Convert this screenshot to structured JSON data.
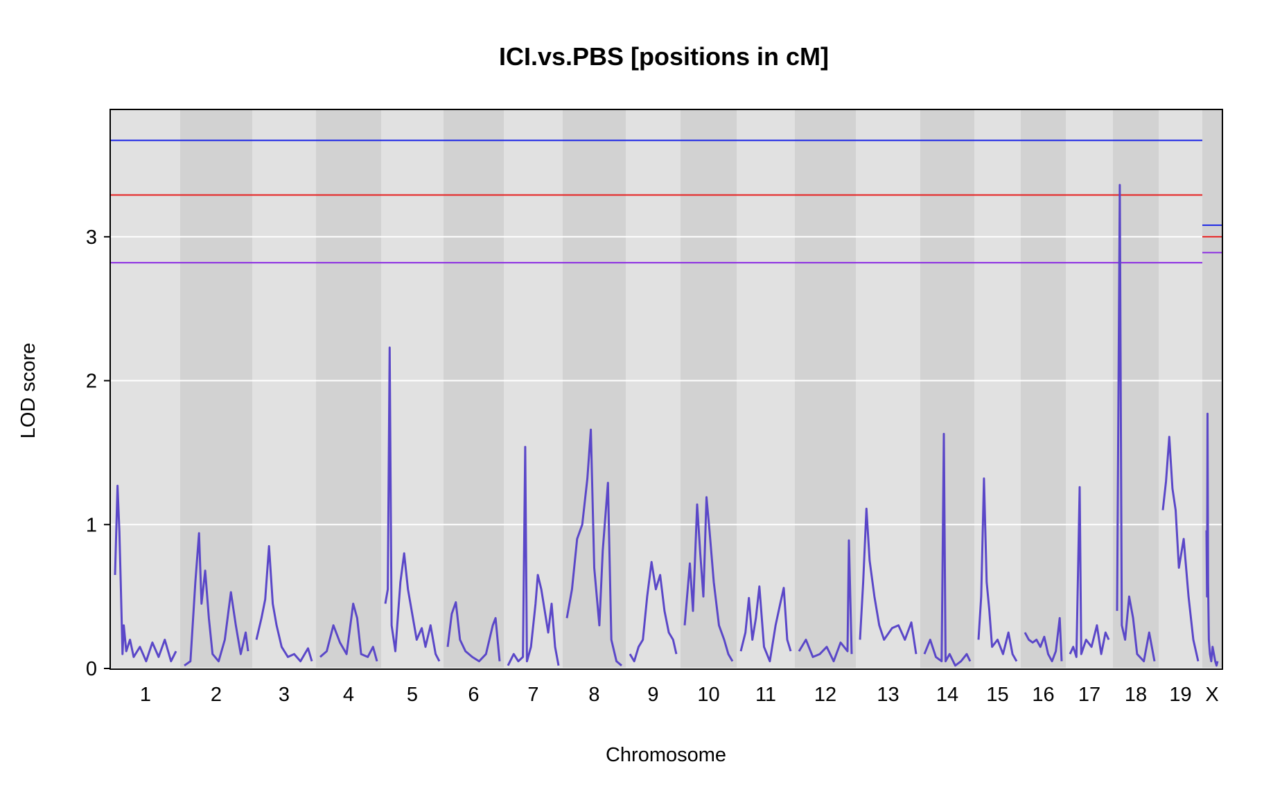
{
  "chart_data": {
    "type": "line",
    "title": "ICI.vs.PBS [positions in cM]",
    "xlabel": "Chromosome",
    "ylabel": "LOD score",
    "ylim": [
      0,
      3.88
    ],
    "yticks": [
      0,
      1,
      2,
      3
    ],
    "ytick_labels": [
      "0",
      "1",
      "2",
      "3"
    ],
    "grid": true,
    "colors": {
      "line": "#5a47c8",
      "band_light": "#e1e1e1",
      "band_dark": "#d2d2d2",
      "grid": "#ffffff",
      "threshold_blue": "#1a24e6",
      "threshold_red": "#e61a1a",
      "threshold_purple": "#8a2be2"
    },
    "chromosomes": [
      {
        "name": "1"
      },
      {
        "name": "2"
      },
      {
        "name": "3"
      },
      {
        "name": "4"
      },
      {
        "name": "5"
      },
      {
        "name": "6"
      },
      {
        "name": "7"
      },
      {
        "name": "8"
      },
      {
        "name": "9"
      },
      {
        "name": "10"
      },
      {
        "name": "11"
      },
      {
        "name": "12"
      },
      {
        "name": "13"
      },
      {
        "name": "14"
      },
      {
        "name": "15"
      },
      {
        "name": "16"
      },
      {
        "name": "17"
      },
      {
        "name": "18"
      },
      {
        "name": "19"
      },
      {
        "name": "X"
      }
    ],
    "thresholds": {
      "autosome": {
        "blue": 3.67,
        "red": 3.29,
        "purple": 2.82
      },
      "x": {
        "blue": 3.08,
        "red": 3.0,
        "purple": 2.89
      }
    },
    "series": [
      {
        "points": {
          "1": [
            [
              0,
              0.65
            ],
            [
              4,
              1.27
            ],
            [
              7,
              0.95
            ],
            [
              9,
              0.62
            ],
            [
              12,
              0.1
            ],
            [
              14,
              0.3
            ],
            [
              18,
              0.12
            ],
            [
              24,
              0.2
            ],
            [
              30,
              0.08
            ],
            [
              40,
              0.15
            ],
            [
              50,
              0.05
            ],
            [
              60,
              0.18
            ],
            [
              70,
              0.08
            ],
            [
              80,
              0.2
            ],
            [
              90,
              0.05
            ],
            [
              98,
              0.12
            ]
          ],
          "2": [
            [
              0,
              0.02
            ],
            [
              10,
              0.05
            ],
            [
              18,
              0.6
            ],
            [
              24,
              0.94
            ],
            [
              28,
              0.45
            ],
            [
              34,
              0.68
            ],
            [
              40,
              0.35
            ],
            [
              46,
              0.1
            ],
            [
              56,
              0.05
            ],
            [
              66,
              0.2
            ],
            [
              76,
              0.53
            ],
            [
              84,
              0.3
            ],
            [
              92,
              0.1
            ],
            [
              100,
              0.25
            ],
            [
              104,
              0.12
            ]
          ],
          "3": [
            [
              0,
              0.2
            ],
            [
              8,
              0.35
            ],
            [
              14,
              0.48
            ],
            [
              20,
              0.85
            ],
            [
              26,
              0.45
            ],
            [
              32,
              0.3
            ],
            [
              40,
              0.15
            ],
            [
              50,
              0.08
            ],
            [
              60,
              0.1
            ],
            [
              70,
              0.05
            ],
            [
              82,
              0.14
            ],
            [
              88,
              0.05
            ]
          ],
          "4": [
            [
              0,
              0.08
            ],
            [
              10,
              0.12
            ],
            [
              20,
              0.3
            ],
            [
              30,
              0.18
            ],
            [
              40,
              0.1
            ],
            [
              50,
              0.45
            ],
            [
              56,
              0.35
            ],
            [
              62,
              0.1
            ],
            [
              72,
              0.08
            ],
            [
              80,
              0.15
            ],
            [
              86,
              0.05
            ]
          ],
          "5": [
            [
              0,
              0.45
            ],
            [
              4,
              0.55
            ],
            [
              7,
              2.23
            ],
            [
              10,
              0.3
            ],
            [
              16,
              0.12
            ],
            [
              24,
              0.6
            ],
            [
              30,
              0.8
            ],
            [
              36,
              0.55
            ],
            [
              42,
              0.4
            ],
            [
              50,
              0.2
            ],
            [
              58,
              0.28
            ],
            [
              64,
              0.15
            ],
            [
              72,
              0.3
            ],
            [
              80,
              0.1
            ],
            [
              86,
              0.05
            ]
          ],
          "6": [
            [
              0,
              0.15
            ],
            [
              6,
              0.38
            ],
            [
              12,
              0.46
            ],
            [
              18,
              0.2
            ],
            [
              26,
              0.12
            ],
            [
              36,
              0.08
            ],
            [
              46,
              0.05
            ],
            [
              56,
              0.1
            ],
            [
              66,
              0.3
            ],
            [
              70,
              0.35
            ],
            [
              76,
              0.05
            ]
          ],
          "7": [
            [
              0,
              0.02
            ],
            [
              10,
              0.1
            ],
            [
              18,
              0.05
            ],
            [
              26,
              0.08
            ],
            [
              30,
              1.54
            ],
            [
              33,
              0.05
            ],
            [
              40,
              0.15
            ],
            [
              48,
              0.45
            ],
            [
              52,
              0.65
            ],
            [
              58,
              0.55
            ],
            [
              64,
              0.4
            ],
            [
              70,
              0.25
            ],
            [
              76,
              0.45
            ],
            [
              82,
              0.15
            ],
            [
              88,
              0.02
            ]
          ],
          "8": [
            [
              0,
              0.35
            ],
            [
              6,
              0.55
            ],
            [
              12,
              0.9
            ],
            [
              18,
              1.0
            ],
            [
              24,
              1.32
            ],
            [
              28,
              1.66
            ],
            [
              32,
              0.7
            ],
            [
              38,
              0.3
            ],
            [
              42,
              0.82
            ],
            [
              48,
              1.29
            ],
            [
              52,
              0.2
            ],
            [
              58,
              0.05
            ],
            [
              64,
              0.02
            ]
          ],
          "9": [
            [
              0,
              0.1
            ],
            [
              8,
              0.05
            ],
            [
              16,
              0.15
            ],
            [
              24,
              0.2
            ],
            [
              32,
              0.5
            ],
            [
              40,
              0.74
            ],
            [
              48,
              0.55
            ],
            [
              56,
              0.65
            ],
            [
              64,
              0.4
            ],
            [
              72,
              0.25
            ],
            [
              80,
              0.2
            ],
            [
              86,
              0.1
            ]
          ],
          "10": [
            [
              0,
              0.3
            ],
            [
              10,
              0.73
            ],
            [
              16,
              0.4
            ],
            [
              24,
              1.14
            ],
            [
              30,
              0.8
            ],
            [
              36,
              0.5
            ],
            [
              42,
              1.19
            ],
            [
              48,
              0.95
            ],
            [
              56,
              0.6
            ],
            [
              66,
              0.3
            ],
            [
              76,
              0.2
            ],
            [
              84,
              0.1
            ],
            [
              92,
              0.05
            ]
          ],
          "11": [
            [
              0,
              0.12
            ],
            [
              8,
              0.25
            ],
            [
              14,
              0.49
            ],
            [
              20,
              0.2
            ],
            [
              26,
              0.35
            ],
            [
              32,
              0.57
            ],
            [
              40,
              0.15
            ],
            [
              50,
              0.05
            ],
            [
              60,
              0.3
            ],
            [
              68,
              0.45
            ],
            [
              74,
              0.56
            ],
            [
              80,
              0.2
            ],
            [
              86,
              0.12
            ]
          ],
          "12": [
            [
              0,
              0.12
            ],
            [
              10,
              0.2
            ],
            [
              20,
              0.08
            ],
            [
              30,
              0.1
            ],
            [
              40,
              0.15
            ],
            [
              50,
              0.05
            ],
            [
              60,
              0.18
            ],
            [
              70,
              0.12
            ],
            [
              72,
              0.89
            ],
            [
              76,
              0.1
            ]
          ],
          "13": [
            [
              0,
              0.2
            ],
            [
              4,
              0.6
            ],
            [
              8,
              1.11
            ],
            [
              12,
              0.75
            ],
            [
              18,
              0.5
            ],
            [
              24,
              0.3
            ],
            [
              30,
              0.2
            ],
            [
              40,
              0.28
            ],
            [
              48,
              0.3
            ],
            [
              56,
              0.2
            ],
            [
              64,
              0.32
            ],
            [
              70,
              0.1
            ]
          ],
          "14": [
            [
              0,
              0.1
            ],
            [
              10,
              0.2
            ],
            [
              20,
              0.08
            ],
            [
              30,
              0.05
            ],
            [
              34,
              1.63
            ],
            [
              37,
              0.05
            ],
            [
              44,
              0.1
            ],
            [
              54,
              0.02
            ],
            [
              64,
              0.05
            ],
            [
              74,
              0.1
            ],
            [
              80,
              0.05
            ]
          ],
          "15": [
            [
              0,
              0.2
            ],
            [
              4,
              0.5
            ],
            [
              8,
              1.32
            ],
            [
              12,
              0.6
            ],
            [
              16,
              0.4
            ],
            [
              20,
              0.15
            ],
            [
              28,
              0.2
            ],
            [
              36,
              0.1
            ],
            [
              44,
              0.25
            ],
            [
              50,
              0.1
            ],
            [
              56,
              0.05
            ]
          ],
          "16": [
            [
              0,
              0.25
            ],
            [
              8,
              0.2
            ],
            [
              16,
              0.18
            ],
            [
              24,
              0.2
            ],
            [
              32,
              0.15
            ],
            [
              40,
              0.22
            ],
            [
              48,
              0.1
            ],
            [
              56,
              0.05
            ],
            [
              64,
              0.12
            ],
            [
              72,
              0.35
            ],
            [
              76,
              0.05
            ]
          ],
          "17": [
            [
              0,
              0.1
            ],
            [
              6,
              0.15
            ],
            [
              12,
              0.08
            ],
            [
              18,
              1.26
            ],
            [
              21,
              0.1
            ],
            [
              30,
              0.2
            ],
            [
              40,
              0.15
            ],
            [
              50,
              0.3
            ],
            [
              58,
              0.1
            ],
            [
              66,
              0.25
            ],
            [
              72,
              0.2
            ]
          ],
          "18": [
            [
              0,
              0.4
            ],
            [
              4,
              3.36
            ],
            [
              7,
              0.3
            ],
            [
              12,
              0.2
            ],
            [
              18,
              0.5
            ],
            [
              24,
              0.35
            ],
            [
              30,
              0.1
            ],
            [
              40,
              0.05
            ],
            [
              48,
              0.25
            ],
            [
              56,
              0.05
            ]
          ],
          "19": [
            [
              0,
              1.1
            ],
            [
              4,
              1.3
            ],
            [
              8,
              1.61
            ],
            [
              12,
              1.25
            ],
            [
              16,
              1.1
            ],
            [
              20,
              0.7
            ],
            [
              26,
              0.9
            ],
            [
              32,
              0.5
            ],
            [
              38,
              0.2
            ],
            [
              44,
              0.05
            ]
          ],
          "X": [
            [
              0,
              0.96
            ],
            [
              4,
              0.5
            ],
            [
              8,
              1.77
            ],
            [
              12,
              0.6
            ],
            [
              18,
              0.2
            ],
            [
              26,
              0.1
            ],
            [
              36,
              0.05
            ],
            [
              46,
              0.15
            ],
            [
              56,
              0.1
            ],
            [
              66,
              0.05
            ],
            [
              76,
              0.02
            ],
            [
              84,
              0.05
            ]
          ]
        }
      }
    ]
  }
}
